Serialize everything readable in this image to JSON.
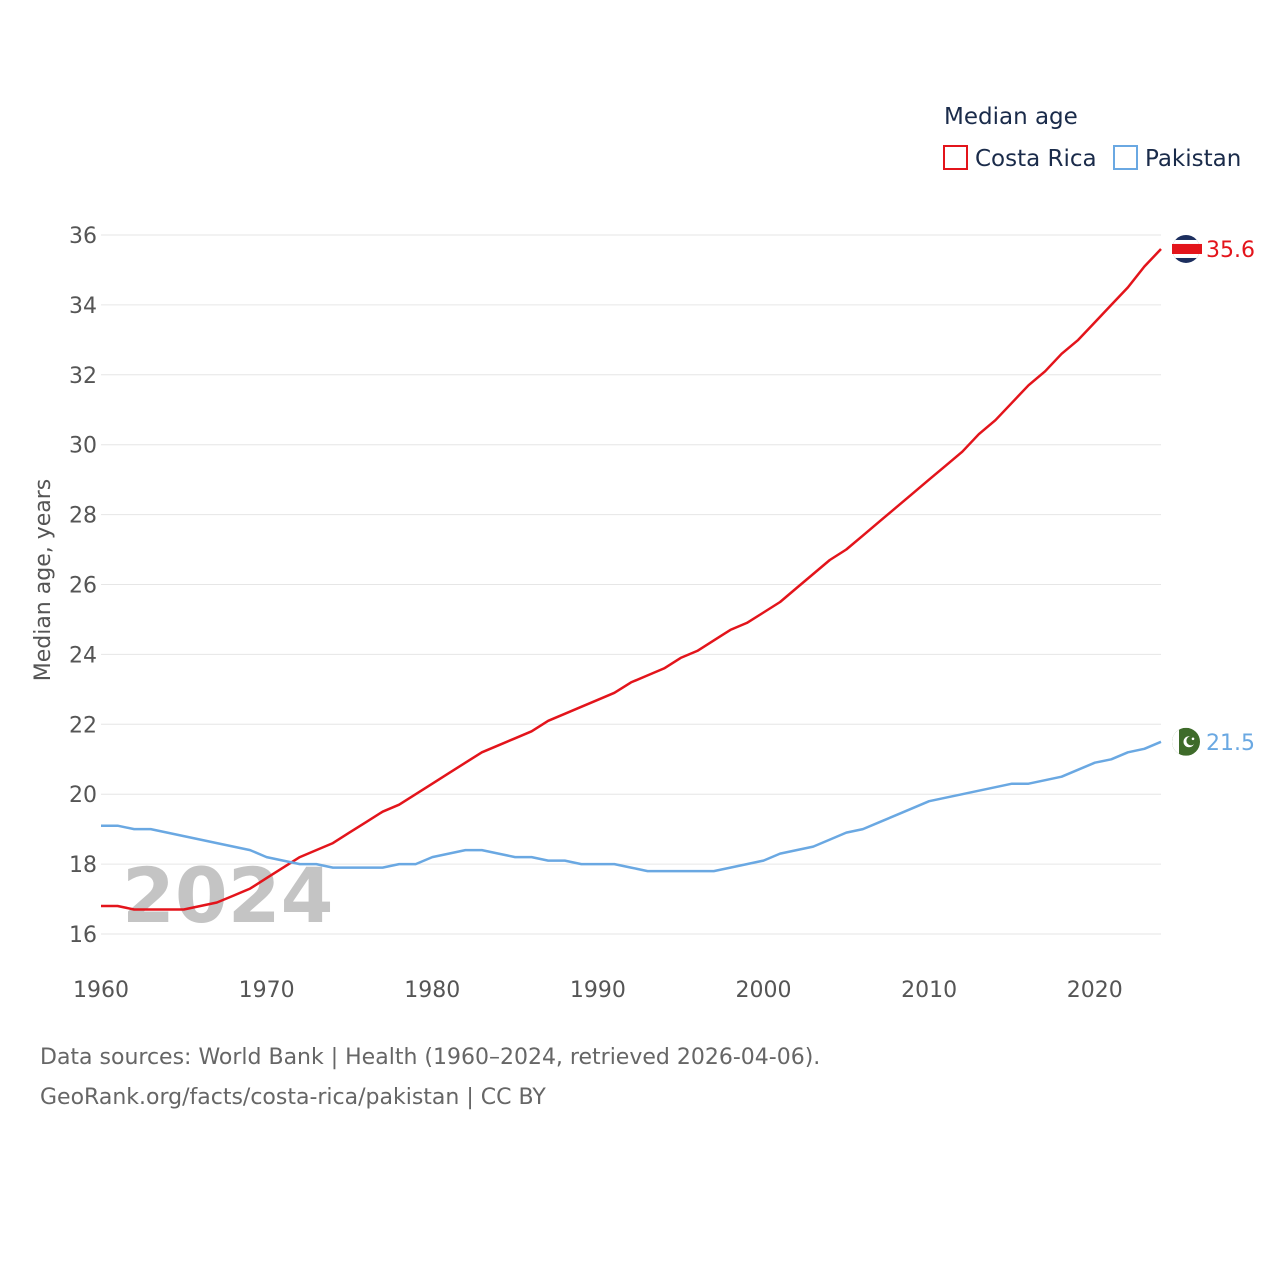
{
  "colors": {
    "costa_rica": "#e3141b",
    "pakistan": "#6aa8e2",
    "grid": "#e6e6e6",
    "text": "#555555",
    "legend_text": "#1a2b4a",
    "cr_flag_blue": "#1c2e5e",
    "pk_flag_green": "#3e6b2a"
  },
  "chart_data": {
    "type": "line",
    "title": "Median age",
    "xlabel": "",
    "ylabel": "Median age, years",
    "xlim": [
      1960,
      2024
    ],
    "ylim": [
      16,
      36
    ],
    "x_ticks": [
      1960,
      1970,
      1980,
      1990,
      2000,
      2010,
      2020
    ],
    "y_ticks": [
      16,
      18,
      20,
      22,
      24,
      26,
      28,
      30,
      32,
      34,
      36
    ],
    "grid": true,
    "legend_placement": "top-right",
    "watermark_year": "2024",
    "x": [
      1960,
      1961,
      1962,
      1963,
      1964,
      1965,
      1966,
      1967,
      1968,
      1969,
      1970,
      1971,
      1972,
      1973,
      1974,
      1975,
      1976,
      1977,
      1978,
      1979,
      1980,
      1981,
      1982,
      1983,
      1984,
      1985,
      1986,
      1987,
      1988,
      1989,
      1990,
      1991,
      1992,
      1993,
      1994,
      1995,
      1996,
      1997,
      1998,
      1999,
      2000,
      2001,
      2002,
      2003,
      2004,
      2005,
      2006,
      2007,
      2008,
      2009,
      2010,
      2011,
      2012,
      2013,
      2014,
      2015,
      2016,
      2017,
      2018,
      2019,
      2020,
      2021,
      2022,
      2023,
      2024
    ],
    "series": [
      {
        "name": "Costa Rica",
        "color_key": "costa_rica",
        "end_label": "35.6",
        "values": [
          16.8,
          16.8,
          16.7,
          16.7,
          16.7,
          16.7,
          16.8,
          16.9,
          17.1,
          17.3,
          17.6,
          17.9,
          18.2,
          18.4,
          18.6,
          18.9,
          19.2,
          19.5,
          19.7,
          20.0,
          20.3,
          20.6,
          20.9,
          21.2,
          21.4,
          21.6,
          21.8,
          22.1,
          22.3,
          22.5,
          22.7,
          22.9,
          23.2,
          23.4,
          23.6,
          23.9,
          24.1,
          24.4,
          24.7,
          24.9,
          25.2,
          25.5,
          25.9,
          26.3,
          26.7,
          27.0,
          27.4,
          27.8,
          28.2,
          28.6,
          29.0,
          29.4,
          29.8,
          30.3,
          30.7,
          31.2,
          31.7,
          32.1,
          32.6,
          33.0,
          33.5,
          34.0,
          34.5,
          35.1,
          35.6
        ]
      },
      {
        "name": "Pakistan",
        "color_key": "pakistan",
        "end_label": "21.5",
        "values": [
          19.1,
          19.1,
          19.0,
          19.0,
          18.9,
          18.8,
          18.7,
          18.6,
          18.5,
          18.4,
          18.2,
          18.1,
          18.0,
          18.0,
          17.9,
          17.9,
          17.9,
          17.9,
          18.0,
          18.0,
          18.2,
          18.3,
          18.4,
          18.4,
          18.3,
          18.2,
          18.2,
          18.1,
          18.1,
          18.0,
          18.0,
          18.0,
          17.9,
          17.8,
          17.8,
          17.8,
          17.8,
          17.8,
          17.9,
          18.0,
          18.1,
          18.3,
          18.4,
          18.5,
          18.7,
          18.9,
          19.0,
          19.2,
          19.4,
          19.6,
          19.8,
          19.9,
          20.0,
          20.1,
          20.2,
          20.3,
          20.3,
          20.4,
          20.5,
          20.7,
          20.9,
          21.0,
          21.2,
          21.3,
          21.5
        ]
      }
    ]
  },
  "footer": {
    "line1": "Data sources: World Bank | Health (1960–2024, retrieved 2026-04-06).",
    "line2": "GeoRank.org/facts/costa-rica/pakistan | CC BY"
  }
}
